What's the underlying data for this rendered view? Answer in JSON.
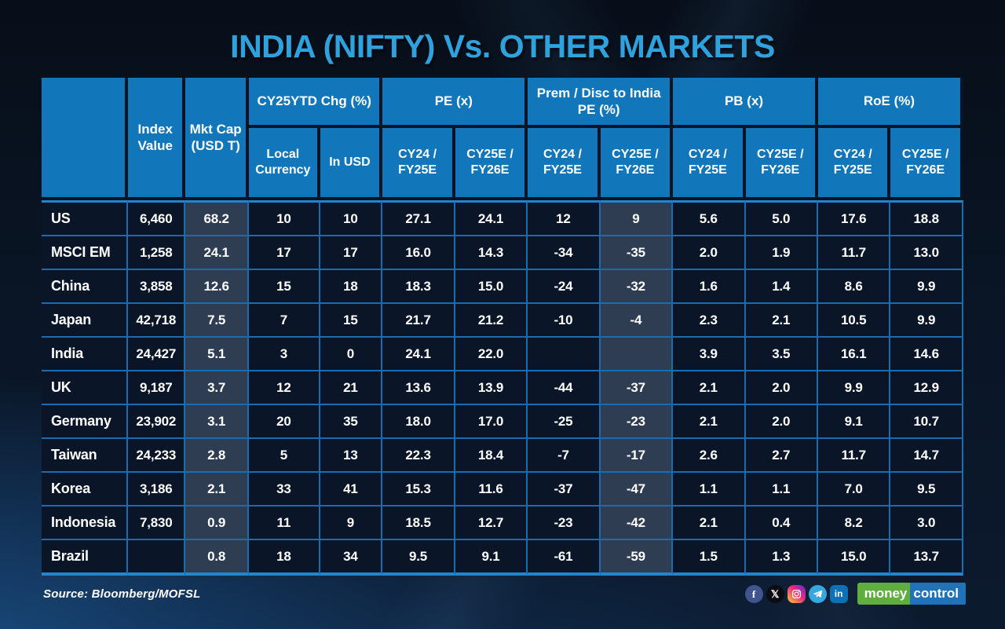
{
  "title": "INDIA (NIFTY) Vs. OTHER MARKETS",
  "colors": {
    "header_blue": "#1277BA",
    "header_sep": "#0A1422",
    "title_blue": "#2FA1DC",
    "grid_blue": "#1B6CAE",
    "grid_blue_bright": "#2486C8",
    "body_cell": "#0A1627",
    "highlight_cell": "#2E3D52",
    "logo_green": "#5FAE3E",
    "logo_blue": "#2173B9"
  },
  "chart_data": {
    "type": "table",
    "title": "INDIA (NIFTY) Vs. OTHER MARKETS",
    "corner_label": "",
    "fixed_columns": [
      "Index Value",
      "Mkt Cap (USD T)"
    ],
    "column_groups": [
      {
        "label": "CY25YTD Chg (%)",
        "subcolumns": [
          "Local Currency",
          "In USD"
        ]
      },
      {
        "label": "PE (x)",
        "subcolumns": [
          "CY24 / FY25E",
          "CY25E / FY26E"
        ]
      },
      {
        "label": "Prem / Disc to India PE (%)",
        "subcolumns": [
          "CY24 / FY25E",
          "CY25E / FY26E"
        ]
      },
      {
        "label": "PB (x)",
        "subcolumns": [
          "CY24 / FY25E",
          "CY25E / FY26E"
        ]
      },
      {
        "label": "RoE (%)",
        "subcolumns": [
          "CY24 / FY25E",
          "CY25E / FY26E"
        ]
      }
    ],
    "column_keys": [
      "index-value",
      "mkt-cap-usd-t",
      "cy25ytd-local-currency",
      "cy25ytd-in-usd",
      "pe-cy24-fy25e",
      "pe-cy25e-fy26e",
      "prem-disc-cy24-fy25e",
      "prem-disc-cy25e-fy26e",
      "pb-cy24-fy25e",
      "pb-cy25e-fy26e",
      "roe-cy24-fy25e",
      "roe-cy25e-fy26e"
    ],
    "highlighted_value_columns": [
      1,
      7
    ],
    "rows": [
      {
        "market": "US",
        "values": [
          "6,460",
          "68.2",
          "10",
          "10",
          "27.1",
          "24.1",
          "12",
          "9",
          "5.6",
          "5.0",
          "17.6",
          "18.8"
        ]
      },
      {
        "market": "MSCI EM",
        "values": [
          "1,258",
          "24.1",
          "17",
          "17",
          "16.0",
          "14.3",
          "-34",
          "-35",
          "2.0",
          "1.9",
          "11.7",
          "13.0"
        ]
      },
      {
        "market": "China",
        "values": [
          "3,858",
          "12.6",
          "15",
          "18",
          "18.3",
          "15.0",
          "-24",
          "-32",
          "1.6",
          "1.4",
          "8.6",
          "9.9"
        ]
      },
      {
        "market": "Japan",
        "values": [
          "42,718",
          "7.5",
          "7",
          "15",
          "21.7",
          "21.2",
          "-10",
          "-4",
          "2.3",
          "2.1",
          "10.5",
          "9.9"
        ]
      },
      {
        "market": "India",
        "values": [
          "24,427",
          "5.1",
          "3",
          "0",
          "24.1",
          "22.0",
          "",
          "",
          "3.9",
          "3.5",
          "16.1",
          "14.6"
        ]
      },
      {
        "market": "UK",
        "values": [
          "9,187",
          "3.7",
          "12",
          "21",
          "13.6",
          "13.9",
          "-44",
          "-37",
          "2.1",
          "2.0",
          "9.9",
          "12.9"
        ]
      },
      {
        "market": "Germany",
        "values": [
          "23,902",
          "3.1",
          "20",
          "35",
          "18.0",
          "17.0",
          "-25",
          "-23",
          "2.1",
          "2.0",
          "9.1",
          "10.7"
        ]
      },
      {
        "market": "Taiwan",
        "values": [
          "24,233",
          "2.8",
          "5",
          "13",
          "22.3",
          "18.4",
          "-7",
          "-17",
          "2.6",
          "2.7",
          "11.7",
          "14.7"
        ]
      },
      {
        "market": "Korea",
        "values": [
          "3,186",
          "2.1",
          "33",
          "41",
          "15.3",
          "11.6",
          "-37",
          "-47",
          "1.1",
          "1.1",
          "7.0",
          "9.5"
        ]
      },
      {
        "market": "Indonesia",
        "values": [
          "7,830",
          "0.9",
          "11",
          "9",
          "18.5",
          "12.7",
          "-23",
          "-42",
          "2.1",
          "0.4",
          "8.2",
          "3.0"
        ]
      },
      {
        "market": "Brazil",
        "values": [
          "",
          "0.8",
          "18",
          "34",
          "9.5",
          "9.1",
          "-61",
          "-59",
          "1.5",
          "1.3",
          "15.0",
          "13.7"
        ]
      }
    ]
  },
  "footer": {
    "source": "Source: Bloomberg/MOFSL",
    "social_icons": [
      "facebook-icon",
      "x-icon",
      "instagram-icon",
      "telegram-icon",
      "linkedin-icon"
    ],
    "logo": {
      "money": "money",
      "control": "control"
    }
  }
}
